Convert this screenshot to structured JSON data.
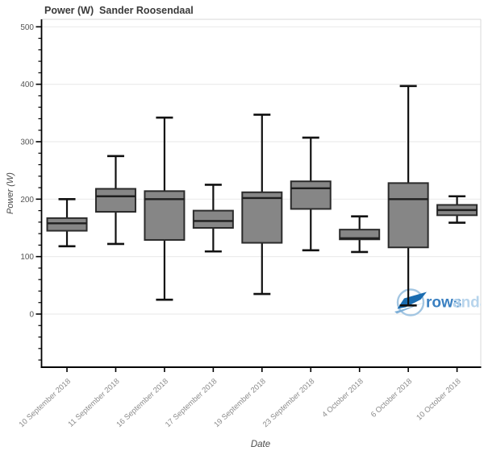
{
  "title": "Power (W)  Sander Roosendaal",
  "axes": {
    "x_label": "Date",
    "y_label": "Power (W)"
  },
  "watermark": {
    "name": "rowsandall-logo",
    "text_dark": "rows",
    "text_light": "andall"
  },
  "colors": {
    "box_fill": "#868686",
    "box_stroke": "#2b2b2b",
    "whisker": "#111111",
    "median": "#1f1f1f",
    "gridline": "#ececec",
    "plot_border": "#d9d9d9",
    "axis": "#000000",
    "y_tick_label": "#555555",
    "x_tick_label": "#8c8c8c",
    "logo_circle": "#a3c6e2",
    "logo_boat": "#1a6cb0",
    "logo_boat_accent": "#7fb0d8",
    "logo_text_dark": "#3a80c1",
    "logo_text_light": "#b7d4ec"
  },
  "chart_data": {
    "type": "boxplot",
    "title": "Power (W)  Sander Roosendaal",
    "xlabel": "Date",
    "ylabel": "Power (W)",
    "ylim": [
      -92,
      513
    ],
    "y_major_ticks": [
      0,
      100,
      200,
      300,
      400,
      500
    ],
    "y_minor_tick_step": 20,
    "grid": "horizontal-major-only",
    "legend": "none",
    "categories": [
      "10 September 2018",
      "11 September 2018",
      "16 September 2018",
      "17 September 2018",
      "19 September 2018",
      "23 September 2018",
      "4 October 2018",
      "6 October 2018",
      "10 October 2018"
    ],
    "series": [
      {
        "name": "Power (W)",
        "boxes": [
          {
            "category": "10 September 2018",
            "low": 118,
            "q1": 145,
            "median": 158,
            "q3": 167,
            "high": 200
          },
          {
            "category": "11 September 2018",
            "low": 122,
            "q1": 178,
            "median": 205,
            "q3": 218,
            "high": 275
          },
          {
            "category": "16 September 2018",
            "low": 25,
            "q1": 129,
            "median": 200,
            "q3": 214,
            "high": 342
          },
          {
            "category": "17 September 2018",
            "low": 109,
            "q1": 150,
            "median": 162,
            "q3": 180,
            "high": 225
          },
          {
            "category": "19 September 2018",
            "low": 35,
            "q1": 124,
            "median": 202,
            "q3": 212,
            "high": 347
          },
          {
            "category": "23 September 2018",
            "low": 111,
            "q1": 183,
            "median": 219,
            "q3": 231,
            "high": 307
          },
          {
            "category": "4 October 2018",
            "low": 108,
            "q1": 130,
            "median": 132,
            "q3": 147,
            "high": 170
          },
          {
            "category": "6 October 2018",
            "low": 15,
            "q1": 116,
            "median": 200,
            "q3": 228,
            "high": 397
          },
          {
            "category": "10 October 2018",
            "low": 159,
            "q1": 172,
            "median": 181,
            "q3": 190,
            "high": 205
          }
        ]
      }
    ]
  }
}
